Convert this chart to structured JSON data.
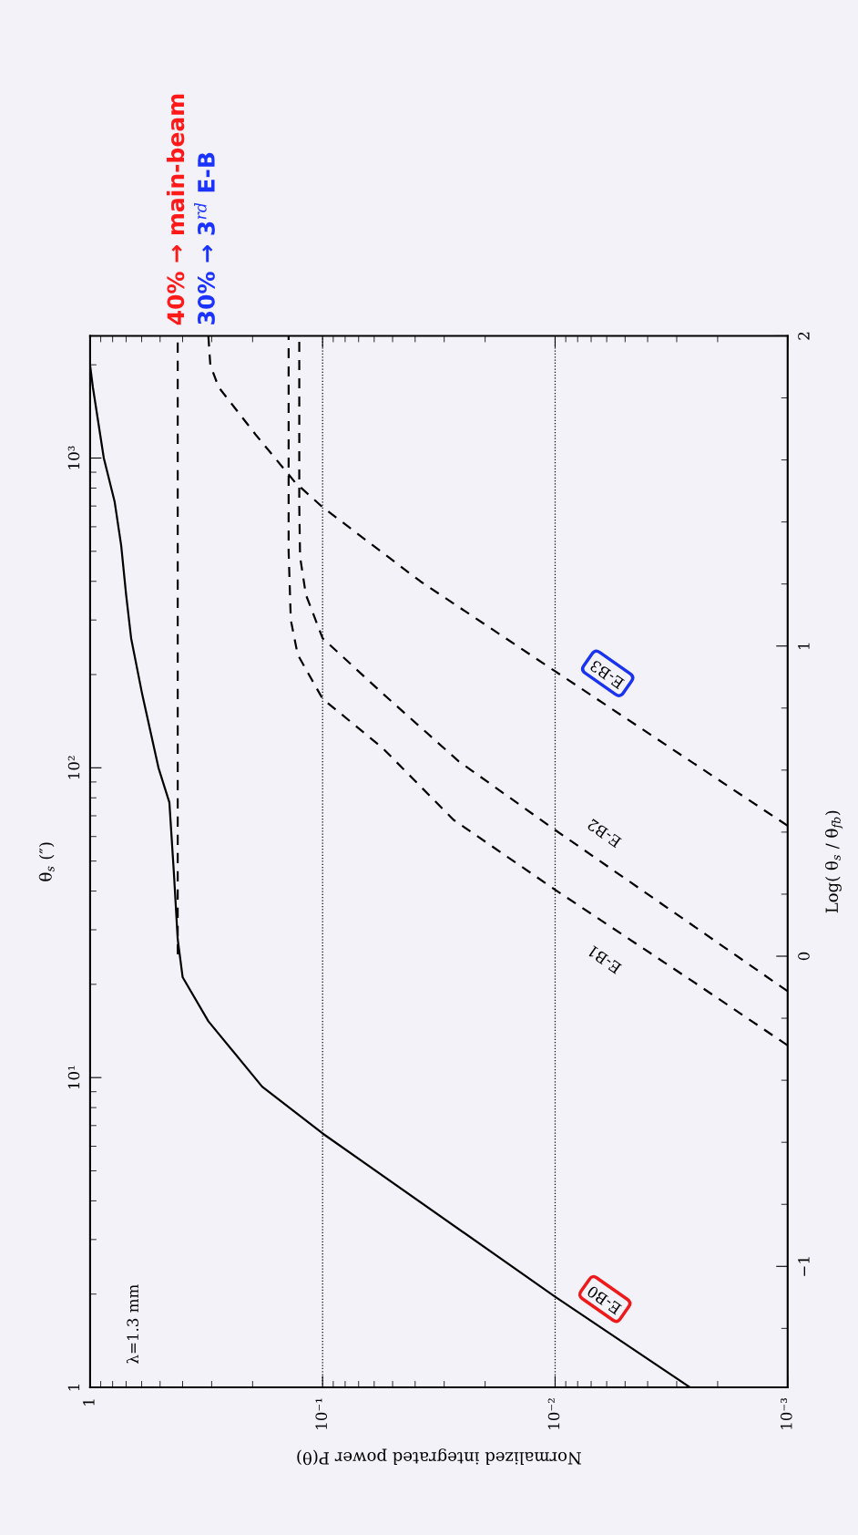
{
  "chart_data": {
    "type": "line",
    "xlabel": "Normalized integrated power P(θ)",
    "ylabel": "θ$_{s}$ (″)",
    "y2label": "Log( θ$_{s}$ / θ$_{fb}$)",
    "log": "xy",
    "grid": "x",
    "xlim": [
      1,
      0.001
    ],
    "ylim": [
      1,
      2480
    ],
    "xticks": [
      1,
      {
        "value": 0.1,
        "label": "10⁻¹"
      },
      {
        "value": 0.01,
        "label": "10⁻²"
      },
      {
        "value": 0.001,
        "label": "10⁻³"
      }
    ],
    "yticks": [
      1,
      {
        "value": 10,
        "label": "10¹"
      },
      {
        "value": 100,
        "label": "10²"
      },
      {
        "value": 1000,
        "label": "10³"
      }
    ],
    "y2lim": [
      -1.39,
      2
    ],
    "y2ticks": [
      {
        "value": -1,
        "label": "−1"
      },
      0,
      1,
      2
    ],
    "series": [
      {
        "color": "#000000",
        "line_style": "solid",
        "values": [
          1,
          1.96,
          6.6,
          9.35,
          15.2,
          21.1,
          28,
          45.6,
          77.3,
          100,
          174,
          262,
          362,
          522,
          722,
          1000,
          1694,
          1995,
          2480
        ],
        "x": [
          0.00263,
          0.01,
          0.1,
          0.182,
          0.31,
          0.4,
          0.42,
          0.436,
          0.456,
          0.508,
          0.598,
          0.666,
          0.7,
          0.735,
          0.784,
          0.873,
          0.973,
          1,
          1
        ]
      },
      {
        "color": "#000000",
        "line_style": "dashed",
        "values": [
          25,
          2480
        ],
        "x": [
          0.42,
          0.42
        ]
      },
      {
        "color": "#000000",
        "line_style": "dashed",
        "values": [
          12.7,
          20,
          40.4,
          68,
          116,
          167,
          232,
          300,
          500,
          2480
        ],
        "x": [
          0.001,
          0.00245,
          0.01,
          0.0274,
          0.0553,
          0.1,
          0.128,
          0.137,
          0.14,
          0.14
        ]
      },
      {
        "color": "#000000",
        "line_style": "dashed",
        "values": [
          19,
          63,
          105,
          174,
          262,
          362,
          480,
          700,
          2480
        ],
        "x": [
          0.001,
          0.01,
          0.026,
          0.0553,
          0.1,
          0.118,
          0.125,
          0.126,
          0.126
        ]
      },
      {
        "color": "#000000",
        "line_style": "dashed",
        "values": [
          65,
          205,
          400,
          694,
          833,
          1178,
          1694,
          1995,
          2480
        ],
        "x": [
          0.001,
          0.01,
          0.038,
          0.1,
          0.131,
          0.192,
          0.28,
          0.304,
          0.31
        ]
      }
    ],
    "annotations": [
      "λ=1.3 mm",
      "E-B0",
      "E-B1",
      "E-B2",
      "E-B3",
      {
        "text": "40% → main-beam",
        "x": 0.42,
        "y": 2480
      },
      {
        "text": "30% → 3$^{rd}$ E-B",
        "x": 0.31,
        "y": 2480
      }
    ]
  }
}
